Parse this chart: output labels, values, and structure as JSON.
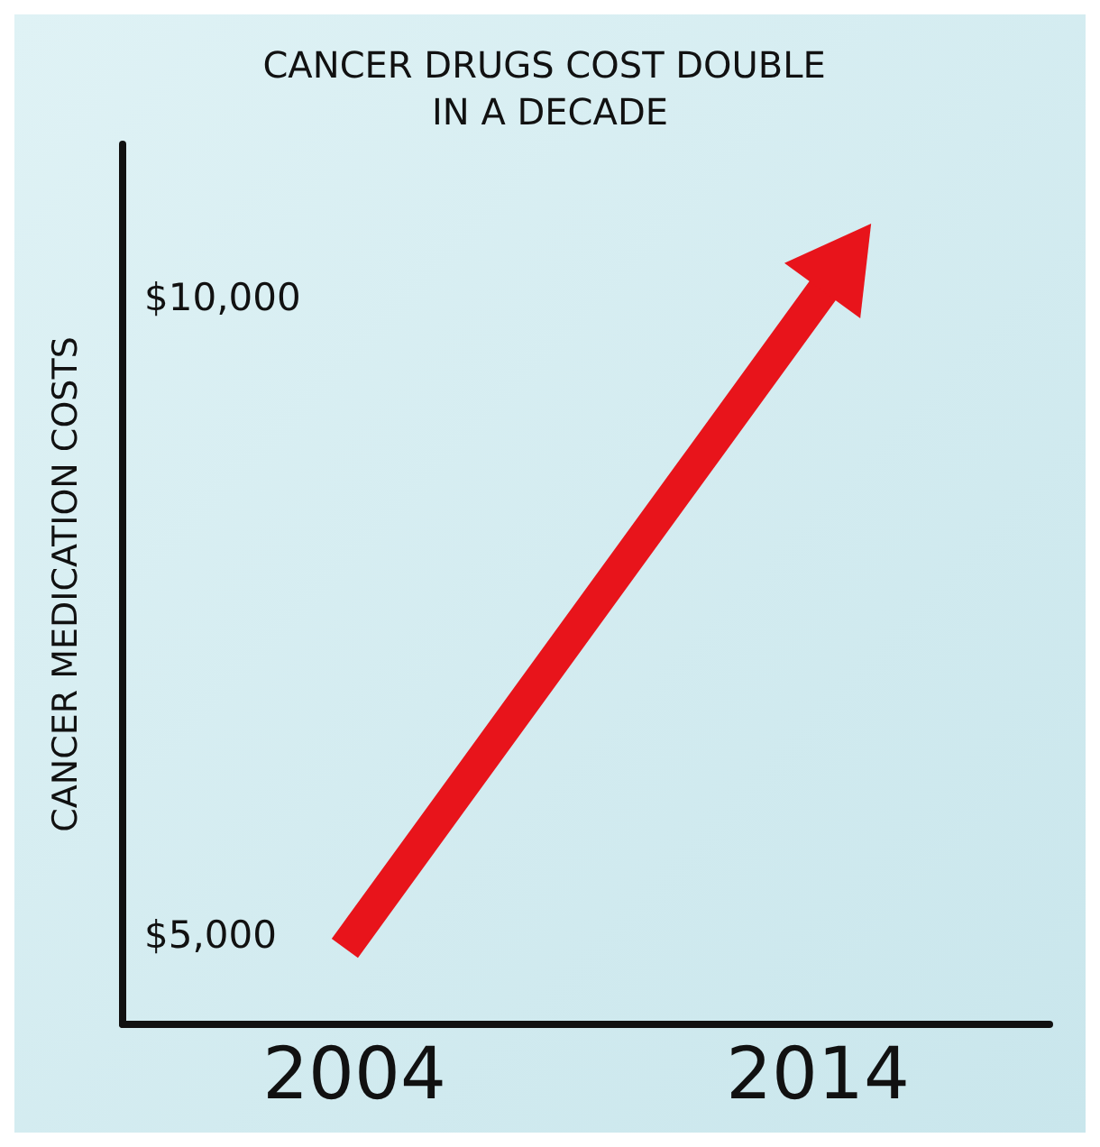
{
  "chart_data": {
    "type": "line",
    "title": "CANCER DRUGS COST DOUBLE IN A DECADE",
    "ylabel": "CANCER MEDICATION COSTS",
    "categories": [
      "2004",
      "2014"
    ],
    "series": [
      {
        "color": "#e8141b",
        "values": [
          5000,
          10000
        ]
      }
    ],
    "ylim": [
      4300,
      11200
    ],
    "yticks": [
      {
        "value": 5000,
        "label": "$5,000"
      },
      {
        "value": 10000,
        "label": "$10,000"
      }
    ],
    "grid": false
  }
}
